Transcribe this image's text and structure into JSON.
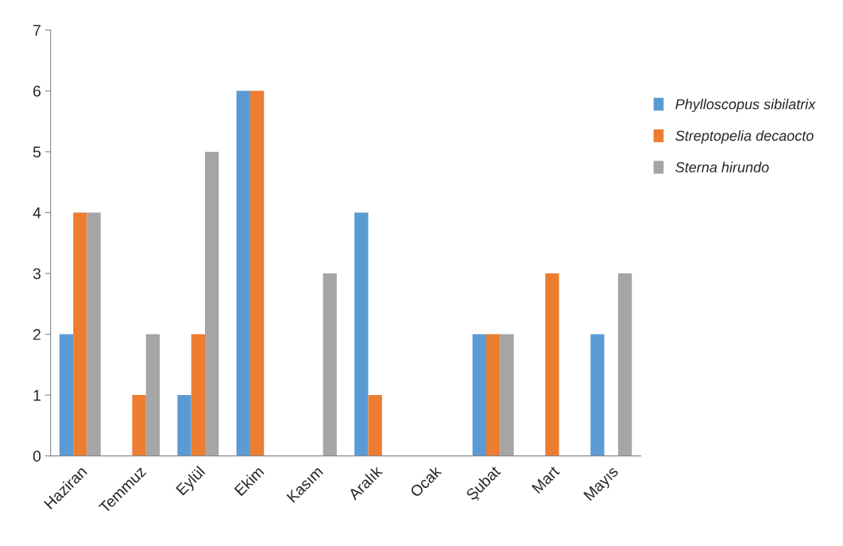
{
  "chart_data": {
    "type": "bar",
    "categories": [
      "Haziran",
      "Temmuz",
      "Eylül",
      "Ekim",
      "Kasım",
      "Aralık",
      "Ocak",
      "Şubat",
      "Mart",
      "Mayıs"
    ],
    "series": [
      {
        "name": "Phylloscopus sibilatrix",
        "color": "#5b9bd5",
        "values": [
          2,
          0,
          1,
          6,
          0,
          4,
          0,
          2,
          0,
          2
        ]
      },
      {
        "name": "Streptopelia decaocto",
        "color": "#ed7d31",
        "values": [
          4,
          1,
          2,
          6,
          0,
          1,
          0,
          2,
          3,
          0
        ]
      },
      {
        "name": "Sterna hirundo",
        "color": "#a5a5a5",
        "values": [
          4,
          2,
          5,
          0,
          3,
          0,
          0,
          2,
          0,
          3
        ]
      }
    ],
    "ylim": [
      0,
      7
    ],
    "yticks": [
      0,
      1,
      2,
      3,
      4,
      5,
      6,
      7
    ],
    "grid": false,
    "legend": "right"
  }
}
